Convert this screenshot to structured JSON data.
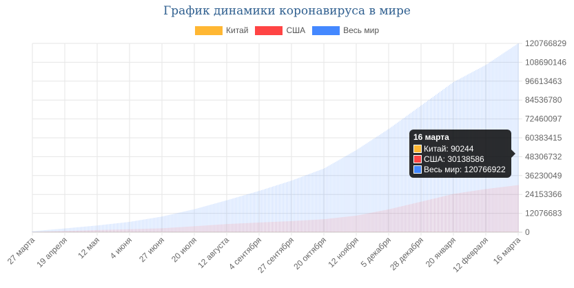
{
  "chart_data": {
    "type": "bar",
    "title": "График динамики коронавируса в мире",
    "legend_position": "top",
    "grid": true,
    "series": [
      {
        "name": "Китай",
        "color": "#ffb733",
        "final": 90244
      },
      {
        "name": "США",
        "color": "#ff4444",
        "final": 30138586
      },
      {
        "name": "Весь мир",
        "color": "#4488ff",
        "final": 120766922
      }
    ],
    "x_tick_labels": [
      "27 марта",
      "19 апреля",
      "12 мая",
      "4 июня",
      "27 июня",
      "20 июля",
      "12 августа",
      "4 сентября",
      "27 сентября",
      "20 октября",
      "12 ноября",
      "5 декабря",
      "28 декабря",
      "20 января",
      "12 февраля",
      "16 марта"
    ],
    "y_ticks": [
      "0",
      "12076683",
      "24153366",
      "36230049",
      "48306732",
      "60383415",
      "72460097",
      "84536780",
      "96613463",
      "108690146",
      "120766829"
    ],
    "ylim": [
      0,
      120766829
    ],
    "world_profile": [
      {
        "date": "27 марта",
        "value": 600000
      },
      {
        "date": "19 апреля",
        "value": 2400000
      },
      {
        "date": "12 мая",
        "value": 4300000
      },
      {
        "date": "4 июня",
        "value": 6600000
      },
      {
        "date": "27 июня",
        "value": 10000000
      },
      {
        "date": "20 июля",
        "value": 14700000
      },
      {
        "date": "12 августа",
        "value": 20400000
      },
      {
        "date": "4 сентября",
        "value": 26400000
      },
      {
        "date": "27 сентября",
        "value": 33000000
      },
      {
        "date": "20 октября",
        "value": 40700000
      },
      {
        "date": "12 ноября",
        "value": 52500000
      },
      {
        "date": "5 декабря",
        "value": 66000000
      },
      {
        "date": "28 декабря",
        "value": 81000000
      },
      {
        "date": "20 января",
        "value": 96000000
      },
      {
        "date": "12 февраля",
        "value": 107000000
      },
      {
        "date": "16 марта",
        "value": 120766922
      }
    ],
    "usa_profile": [
      {
        "date": "27 марта",
        "value": 100000
      },
      {
        "date": "19 апреля",
        "value": 760000
      },
      {
        "date": "12 мая",
        "value": 1380000
      },
      {
        "date": "4 июня",
        "value": 1900000
      },
      {
        "date": "27 июня",
        "value": 2500000
      },
      {
        "date": "20 июля",
        "value": 3800000
      },
      {
        "date": "12 августа",
        "value": 5200000
      },
      {
        "date": "4 сентября",
        "value": 6200000
      },
      {
        "date": "27 сентября",
        "value": 7100000
      },
      {
        "date": "20 октября",
        "value": 8300000
      },
      {
        "date": "12 ноября",
        "value": 10600000
      },
      {
        "date": "5 декабря",
        "value": 14600000
      },
      {
        "date": "28 декабря",
        "value": 19500000
      },
      {
        "date": "20 января",
        "value": 24500000
      },
      {
        "date": "12 февраля",
        "value": 27600000
      },
      {
        "date": "16 марта",
        "value": 30138586
      }
    ],
    "china_profile": [
      {
        "date": "27 марта",
        "value": 81000
      },
      {
        "date": "16 марта",
        "value": 90244
      }
    ]
  },
  "tooltip": {
    "title": "16 марта",
    "rows": [
      {
        "label": "Китай: 90244",
        "color": "#ffb733"
      },
      {
        "label": "США: 30138586",
        "color": "#ff4444"
      },
      {
        "label": "Весь мир: 120766922",
        "color": "#4488ff"
      }
    ]
  }
}
